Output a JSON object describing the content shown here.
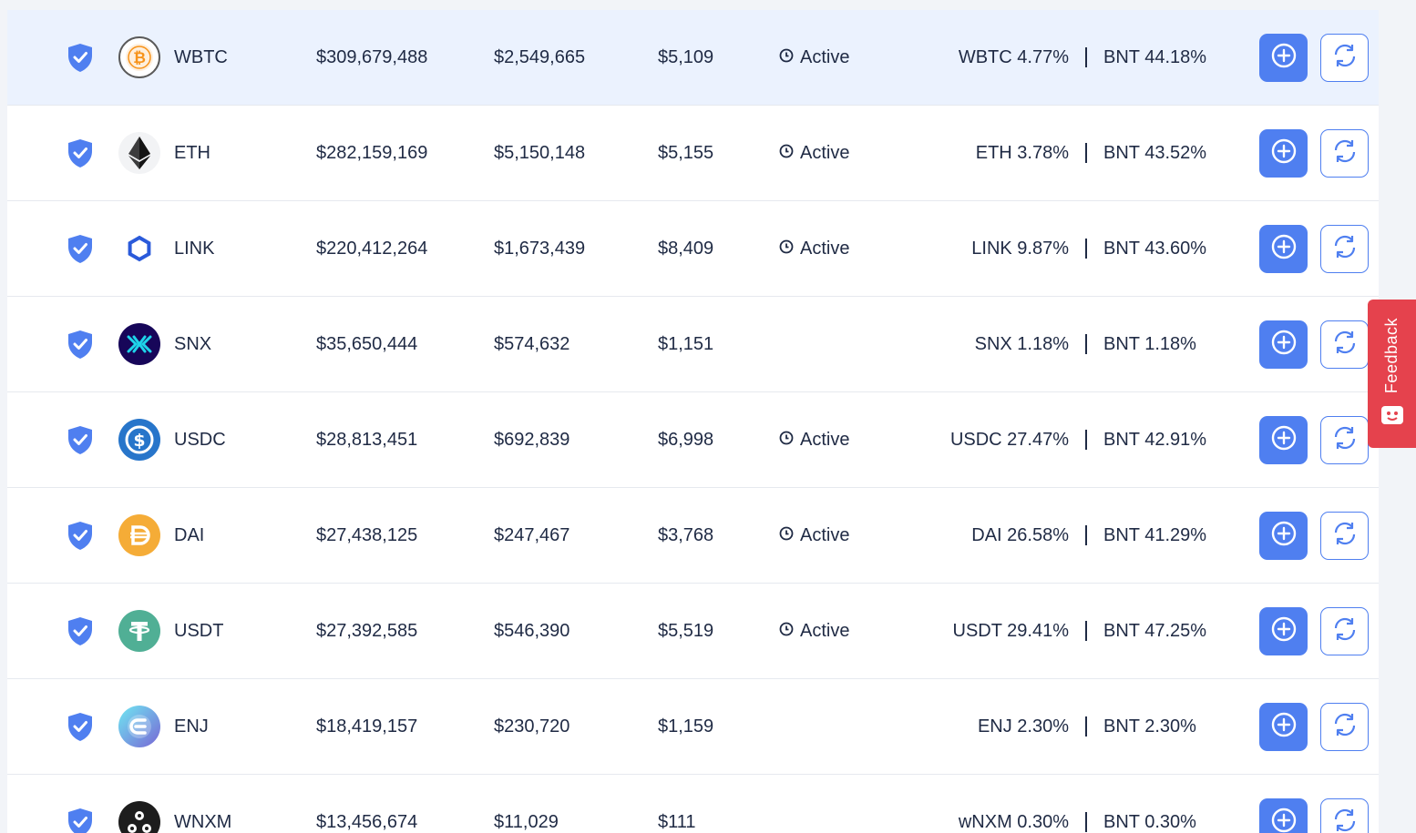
{
  "colors": {
    "accent": "#4f7ff0",
    "row_hover": "#ebf2fe",
    "feedback": "#e5424d",
    "text": "#1f2a44"
  },
  "status_active_label": "Active",
  "feedback_label": "Feedback",
  "pools": [
    {
      "symbol": "WBTC",
      "icon": "wbtc-icon",
      "liquidity": "$309,679,488",
      "volume": "$2,549,665",
      "fees": "$5,109",
      "status": "Active",
      "token_ratio": "WBTC 4.77%",
      "bnt_ratio": "BNT 44.18%",
      "highlighted": true
    },
    {
      "symbol": "ETH",
      "icon": "eth-icon",
      "liquidity": "$282,159,169",
      "volume": "$5,150,148",
      "fees": "$5,155",
      "status": "Active",
      "token_ratio": "ETH 3.78%",
      "bnt_ratio": "BNT 43.52%"
    },
    {
      "symbol": "LINK",
      "icon": "link-icon",
      "liquidity": "$220,412,264",
      "volume": "$1,673,439",
      "fees": "$8,409",
      "status": "Active",
      "token_ratio": "LINK 9.87%",
      "bnt_ratio": "BNT 43.60%"
    },
    {
      "symbol": "SNX",
      "icon": "snx-icon",
      "liquidity": "$35,650,444",
      "volume": "$574,632",
      "fees": "$1,151",
      "status": "",
      "token_ratio": "SNX 1.18%",
      "bnt_ratio": "BNT 1.18%"
    },
    {
      "symbol": "USDC",
      "icon": "usdc-icon",
      "liquidity": "$28,813,451",
      "volume": "$692,839",
      "fees": "$6,998",
      "status": "Active",
      "token_ratio": "USDC 27.47%",
      "bnt_ratio": "BNT 42.91%"
    },
    {
      "symbol": "DAI",
      "icon": "dai-icon",
      "liquidity": "$27,438,125",
      "volume": "$247,467",
      "fees": "$3,768",
      "status": "Active",
      "token_ratio": "DAI 26.58%",
      "bnt_ratio": "BNT 41.29%"
    },
    {
      "symbol": "USDT",
      "icon": "usdt-icon",
      "liquidity": "$27,392,585",
      "volume": "$546,390",
      "fees": "$5,519",
      "status": "Active",
      "token_ratio": "USDT 29.41%",
      "bnt_ratio": "BNT 47.25%"
    },
    {
      "symbol": "ENJ",
      "icon": "enj-icon",
      "liquidity": "$18,419,157",
      "volume": "$230,720",
      "fees": "$1,159",
      "status": "",
      "token_ratio": "ENJ 2.30%",
      "bnt_ratio": "BNT 2.30%"
    },
    {
      "symbol": "WNXM",
      "icon": "wnxm-icon",
      "liquidity": "$13,456,674",
      "volume": "$11,029",
      "fees": "$111",
      "status": "",
      "token_ratio": "wNXM 0.30%",
      "bnt_ratio": "BNT 0.30%"
    }
  ]
}
